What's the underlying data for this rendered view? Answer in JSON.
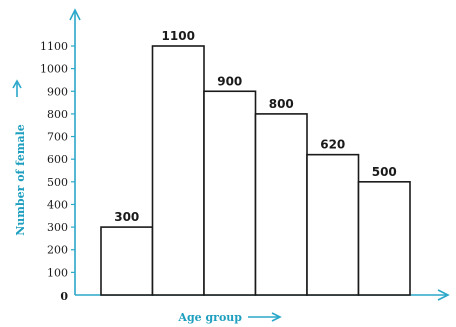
{
  "chart_data": {
    "type": "bar",
    "categories": [
      "",
      "",
      "",
      "",
      "",
      ""
    ],
    "values": [
      300,
      1100,
      900,
      800,
      620,
      500
    ],
    "data_labels": [
      "300",
      "1100",
      "900",
      "800",
      "620",
      "500"
    ],
    "xlabel": "Age group",
    "ylabel": "Number of female",
    "ylim": [
      0,
      1100
    ],
    "yticks": [
      100,
      200,
      300,
      400,
      500,
      600,
      700,
      800,
      900,
      1000,
      1100
    ],
    "origin_label": "0",
    "grid": false,
    "legend": "none"
  },
  "colors": {
    "axis": "#2aa7c9",
    "axis_label": "#1f9fbf",
    "bar_fill": "#ffffff",
    "bar_stroke": "#1a1a1a"
  }
}
